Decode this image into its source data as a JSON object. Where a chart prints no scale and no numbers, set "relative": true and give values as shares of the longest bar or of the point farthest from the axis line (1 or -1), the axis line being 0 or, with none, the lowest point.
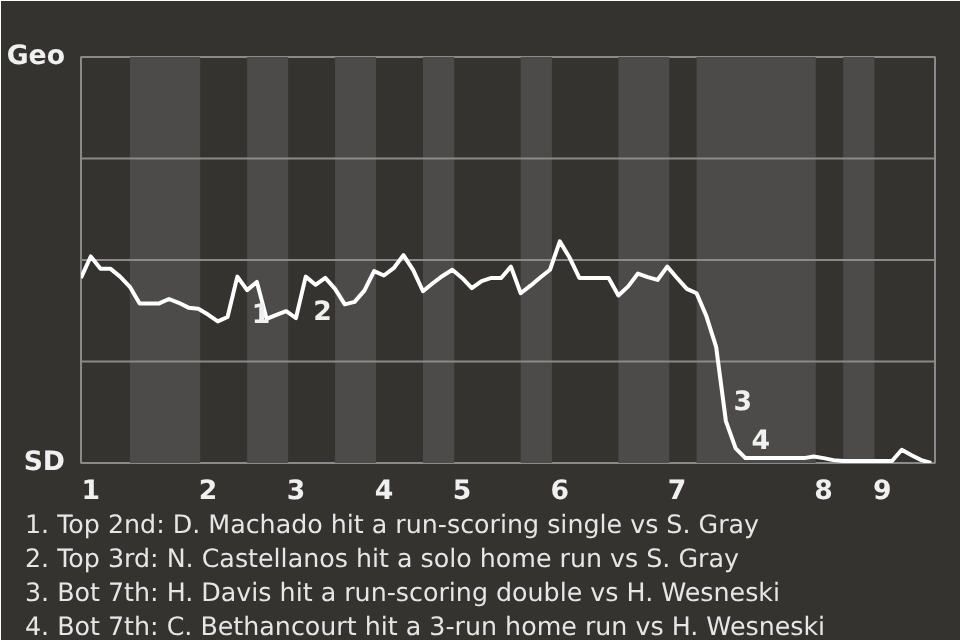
{
  "chart_data": {
    "type": "line",
    "relative": true,
    "categories": [
      null,
      "1",
      null,
      null,
      null,
      null,
      null,
      null,
      null,
      null,
      null,
      null,
      null,
      "2",
      null,
      null,
      null,
      null,
      null,
      null,
      null,
      null,
      "3",
      null,
      null,
      null,
      null,
      null,
      null,
      null,
      null,
      "4",
      null,
      null,
      null,
      null,
      null,
      null,
      null,
      "5",
      null,
      null,
      null,
      null,
      null,
      null,
      null,
      null,
      null,
      "6",
      null,
      null,
      null,
      null,
      null,
      null,
      null,
      null,
      null,
      null,
      null,
      "7",
      null,
      null,
      null,
      null,
      null,
      null,
      null,
      null,
      null,
      null,
      null,
      null,
      null,
      null,
      "8",
      null,
      null,
      null,
      null,
      null,
      "9",
      null,
      null,
      null,
      null,
      null
    ],
    "series": [
      {
        "color": "#ffffff",
        "values": [
          0.835,
          0.932,
          0.877,
          0.877,
          0.841,
          0.795,
          0.72,
          0.72,
          0.72,
          0.74,
          0.723,
          0.701,
          0.696,
          0.67,
          0.639,
          0.659,
          0.841,
          0.78,
          0.817,
          0.65,
          0.668,
          0.685,
          0.654,
          0.841,
          0.804,
          0.835,
          0.786,
          0.716,
          0.727,
          0.778,
          0.866,
          0.846,
          0.879,
          0.938,
          0.87,
          0.775,
          0.811,
          0.844,
          0.872,
          0.835,
          0.789,
          0.821,
          0.835,
          0.835,
          0.886,
          0.766,
          0.8,
          0.837,
          0.872,
          1,
          0.927,
          0.835,
          0.835,
          0.835,
          0.835,
          0.756,
          0.797,
          0.855,
          0.839,
          0.826,
          0.886,
          0.835,
          0.786,
          0.766,
          0.663,
          0.524,
          0.189,
          0.066,
          0.022,
          0.022,
          0.022,
          0.022,
          0.022,
          0.022,
          0.022,
          0.029,
          0.022,
          0.013,
          0.009,
          0.009,
          0.009,
          0.009,
          0.009,
          0.009,
          0.06,
          0.035,
          0.013,
          0
        ]
      }
    ],
    "ref_lines": [
      {
        "axis": "y",
        "value": 0.458,
        "color": "#8a8a8a"
      },
      {
        "axis": "y",
        "value": 0.916,
        "color": "#8a8a8a"
      },
      {
        "axis": "y",
        "value": 1.374,
        "color": "#8a8a8a"
      }
    ],
    "annotations": [
      "Geo",
      "SD",
      "1",
      "2",
      "3",
      "4",
      "1. Top 2nd: D. Machado hit a run-scoring single vs S. Gray",
      "2. Top 3rd: N. Castellanos hit a solo home run vs S. Gray",
      "3. Bot 7th: H. Davis hit a run-scoring double vs H. Wesneski",
      "4. Bot 7th: C. Bethancourt hit a 3-run home run vs H. Wesneski"
    ]
  }
}
